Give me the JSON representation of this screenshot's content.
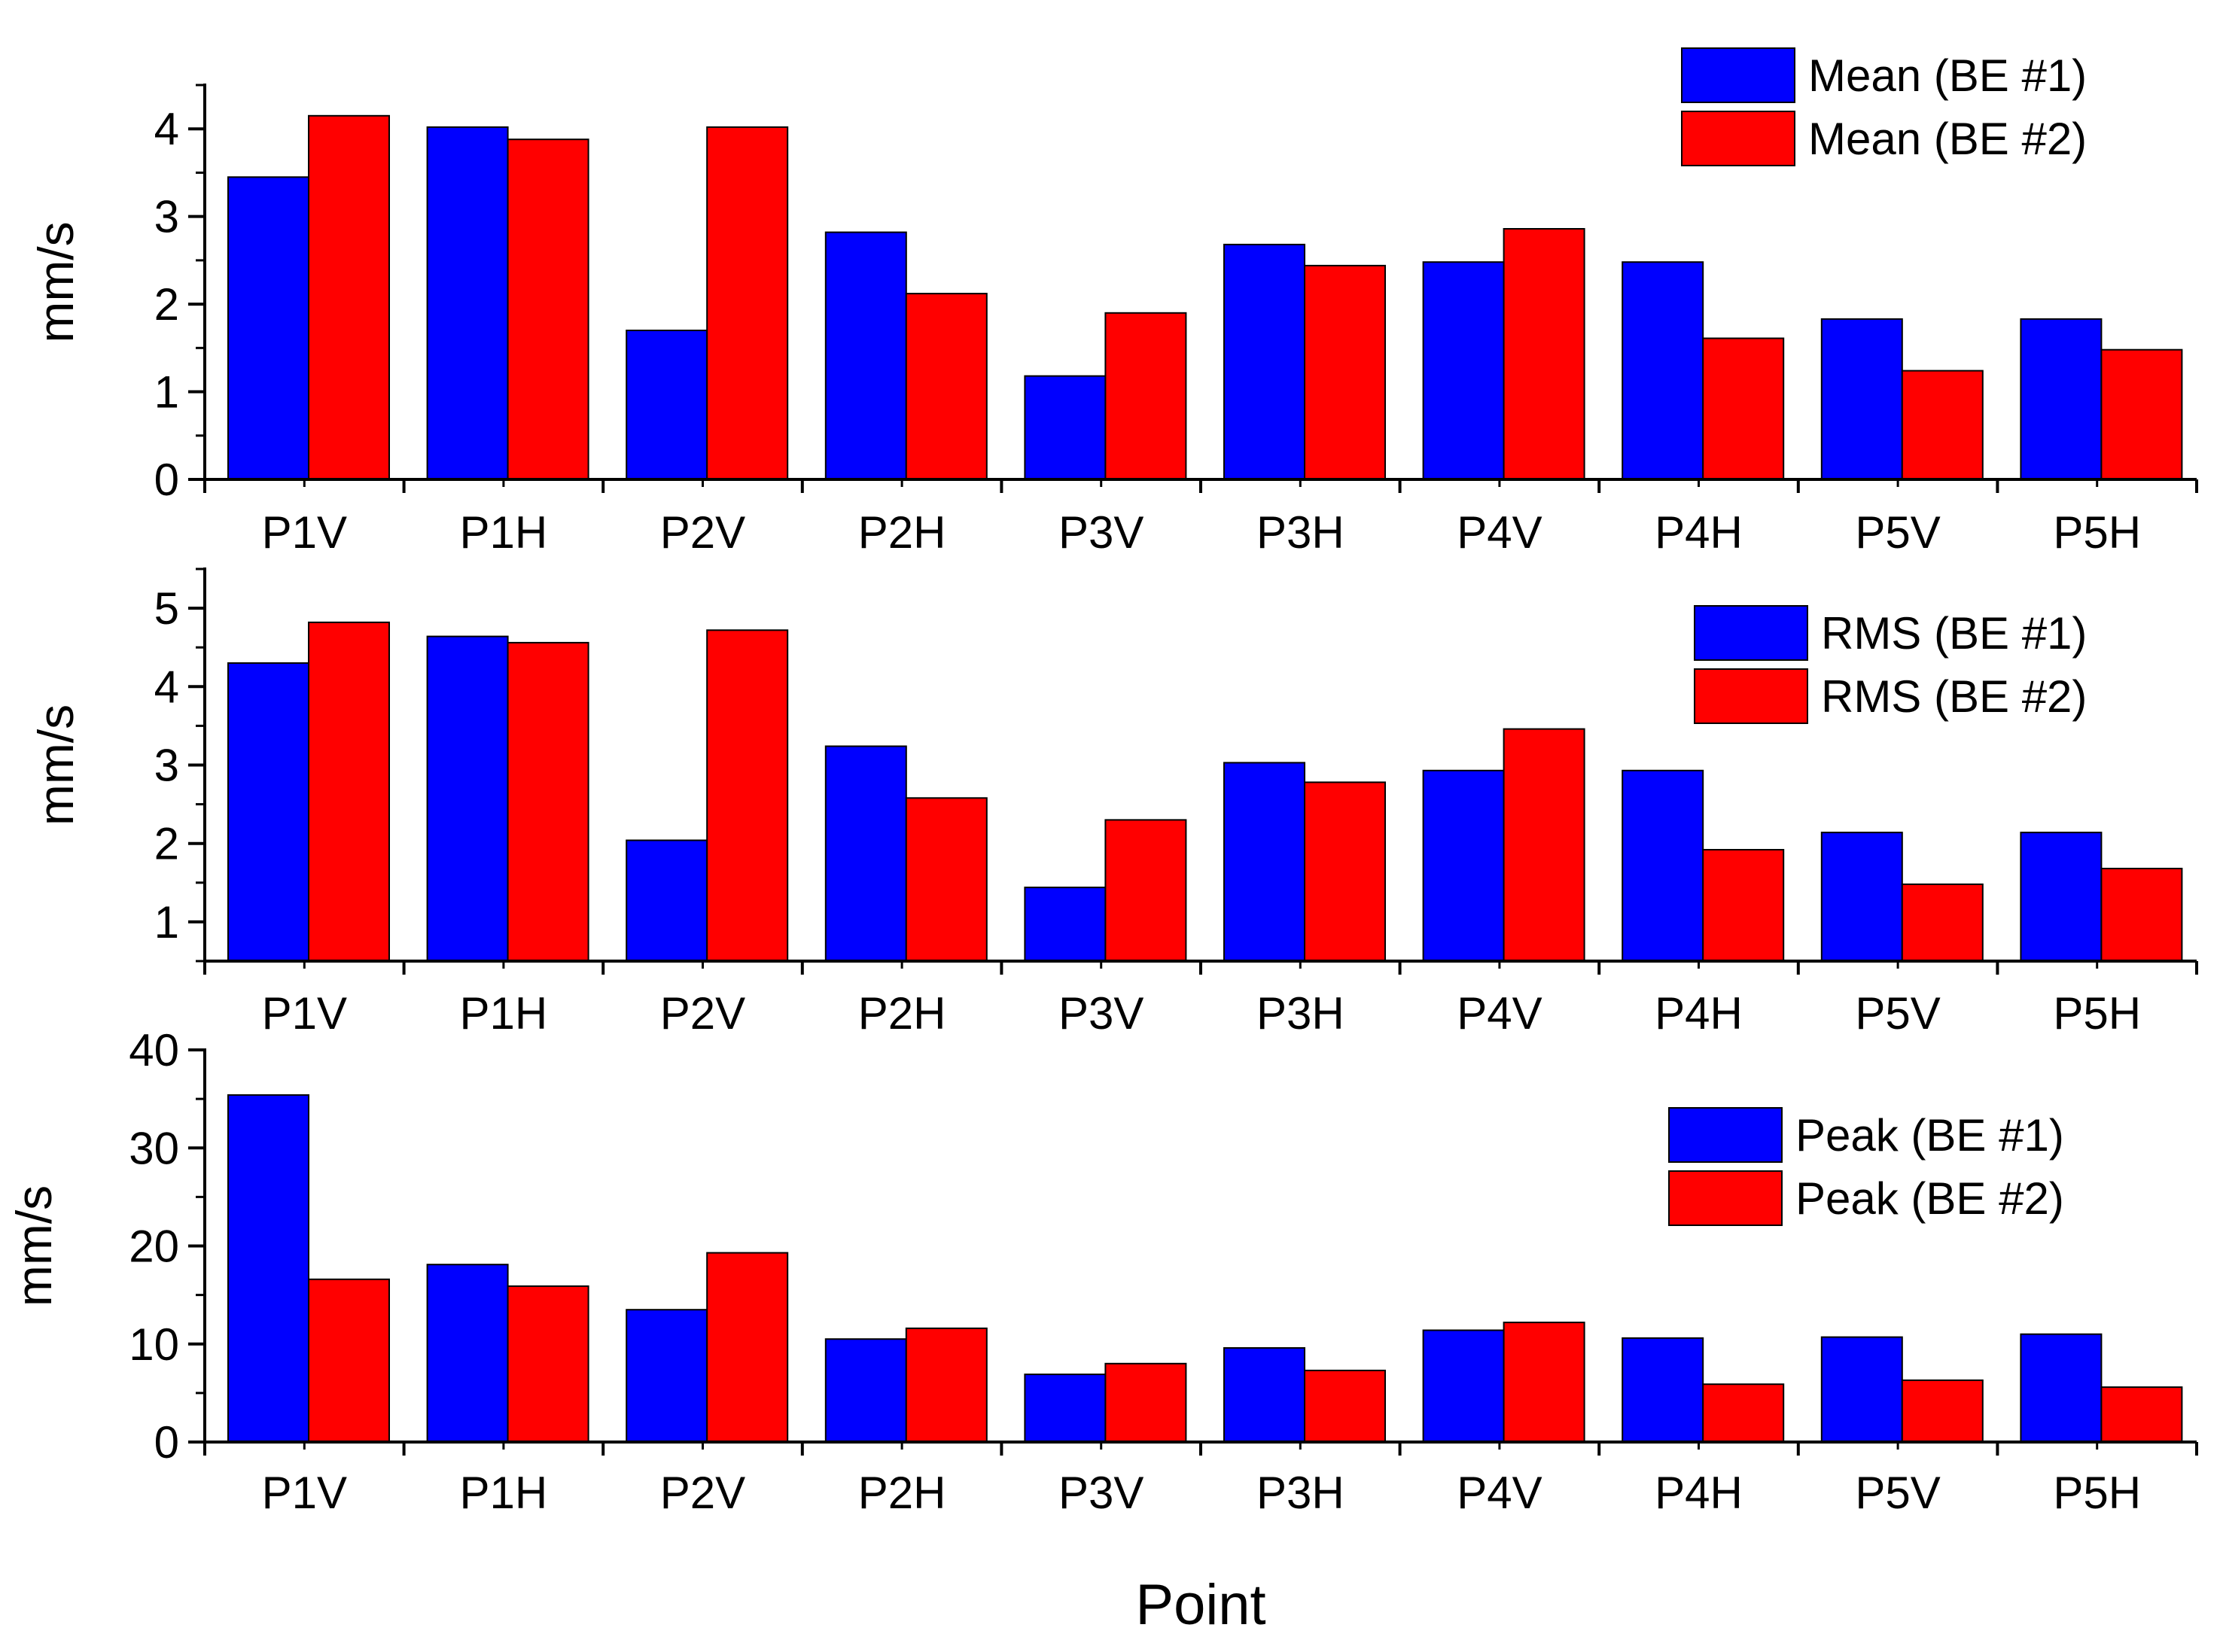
{
  "chart_data": [
    {
      "type": "bar",
      "title": "",
      "xlabel": "",
      "ylabel": "mm/s",
      "ylim": [
        0,
        4.5
      ],
      "yticks": [
        0,
        1,
        2,
        3,
        4
      ],
      "categories": [
        "P1V",
        "P1H",
        "P2V",
        "P2H",
        "P3V",
        "P3H",
        "P4V",
        "P4H",
        "P5V",
        "P5H"
      ],
      "series": [
        {
          "name": "Mean (BE #1)",
          "color": "#0000ff",
          "values": [
            3.45,
            4.02,
            1.7,
            2.82,
            1.18,
            2.68,
            2.48,
            2.48,
            1.83,
            1.83
          ]
        },
        {
          "name": "Mean (BE #2)",
          "color": "#ff0000",
          "values": [
            4.15,
            3.88,
            4.02,
            2.12,
            1.9,
            2.44,
            2.86,
            1.61,
            1.24,
            1.48
          ]
        }
      ],
      "legend": "top-right",
      "grid": false
    },
    {
      "type": "bar",
      "title": "",
      "xlabel": "",
      "ylabel": "mm/s",
      "ylim": [
        0.5,
        5.5
      ],
      "yticks": [
        1,
        2,
        3,
        4,
        5
      ],
      "categories": [
        "P1V",
        "P1H",
        "P2V",
        "P2H",
        "P3V",
        "P3H",
        "P4V",
        "P4H",
        "P5V",
        "P5H"
      ],
      "series": [
        {
          "name": "RMS (BE #1)",
          "color": "#0000ff",
          "values": [
            4.3,
            4.64,
            2.04,
            3.24,
            1.44,
            3.03,
            2.93,
            2.93,
            2.14,
            2.14
          ]
        },
        {
          "name": "RMS (BE #2)",
          "color": "#ff0000",
          "values": [
            4.82,
            4.56,
            4.72,
            2.58,
            2.3,
            2.78,
            3.46,
            1.92,
            1.48,
            1.68
          ]
        }
      ],
      "legend": "top-right",
      "grid": false
    },
    {
      "type": "bar",
      "title": "",
      "xlabel": "Point",
      "ylabel": "mm/s",
      "ylim": [
        0,
        40
      ],
      "yticks": [
        0,
        10,
        20,
        30,
        40
      ],
      "categories": [
        "P1V",
        "P1H",
        "P2V",
        "P2H",
        "P3V",
        "P3H",
        "P4V",
        "P4H",
        "P5V",
        "P5H"
      ],
      "series": [
        {
          "name": "Peak (BE #1)",
          "color": "#0000ff",
          "values": [
            35.4,
            18.1,
            13.5,
            10.5,
            6.9,
            9.6,
            11.4,
            10.6,
            10.7,
            11.0
          ]
        },
        {
          "name": "Peak (BE #2)",
          "color": "#ff0000",
          "values": [
            16.6,
            15.9,
            19.3,
            11.6,
            8.0,
            7.3,
            12.2,
            5.9,
            6.3,
            5.6
          ]
        }
      ],
      "legend": "top-right",
      "grid": false
    }
  ]
}
